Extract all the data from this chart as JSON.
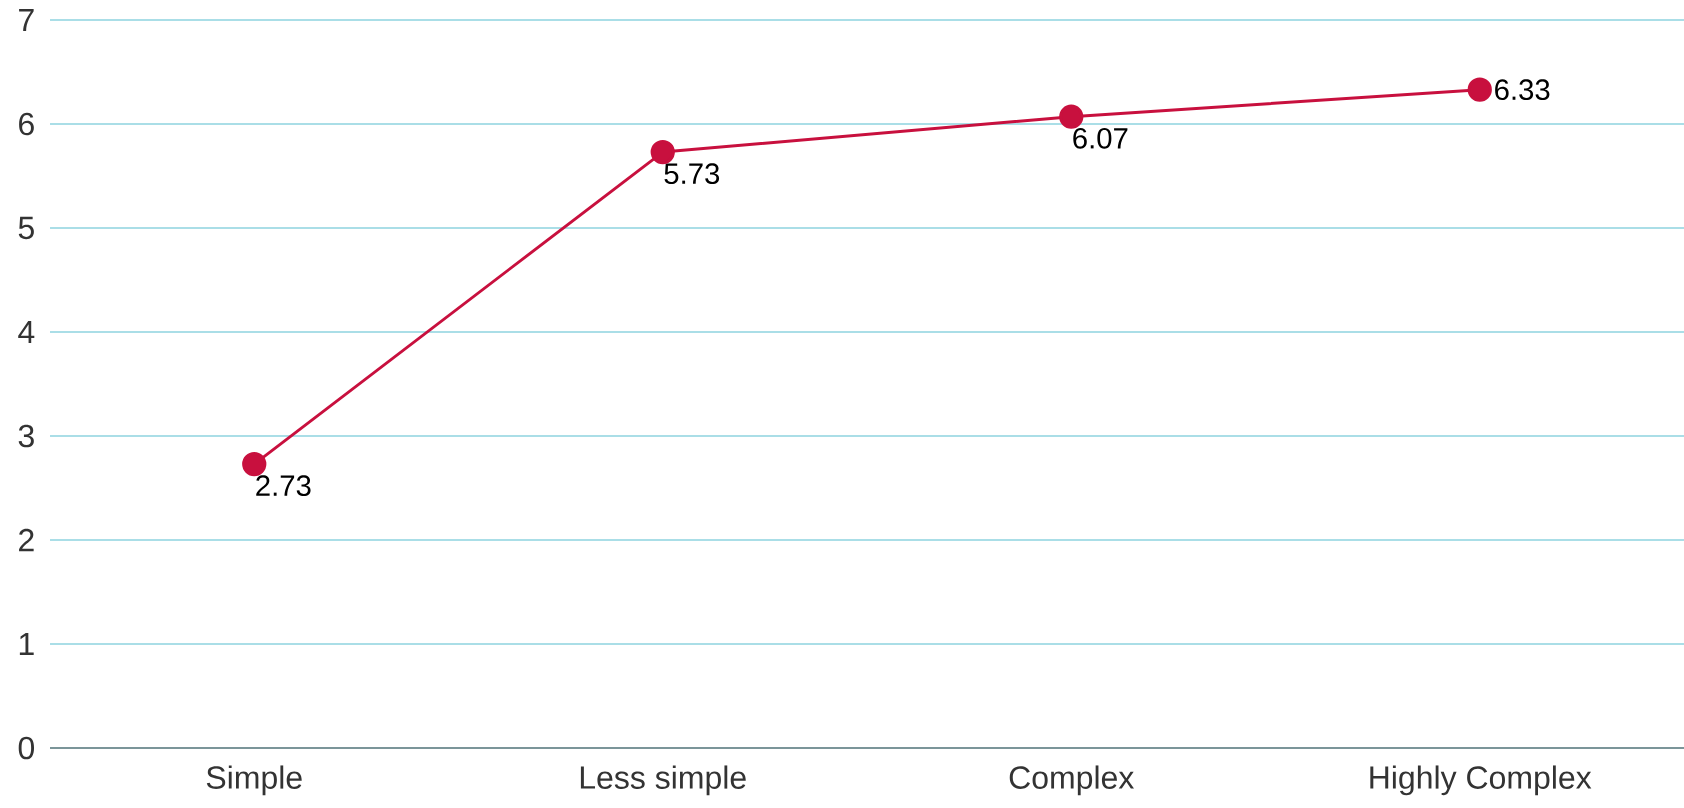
{
  "chart_data": {
    "type": "line",
    "categories": [
      "Simple",
      "Less simple",
      "Complex",
      "Highly Complex"
    ],
    "values": [
      2.73,
      5.73,
      6.07,
      6.33
    ],
    "color": "#c8103e",
    "ylim": [
      0,
      7
    ],
    "yticks": [
      0,
      1,
      2,
      3,
      4,
      5,
      6,
      7
    ],
    "grid": "y",
    "marker": "circle",
    "line_style": "solid",
    "data_labels": true
  }
}
